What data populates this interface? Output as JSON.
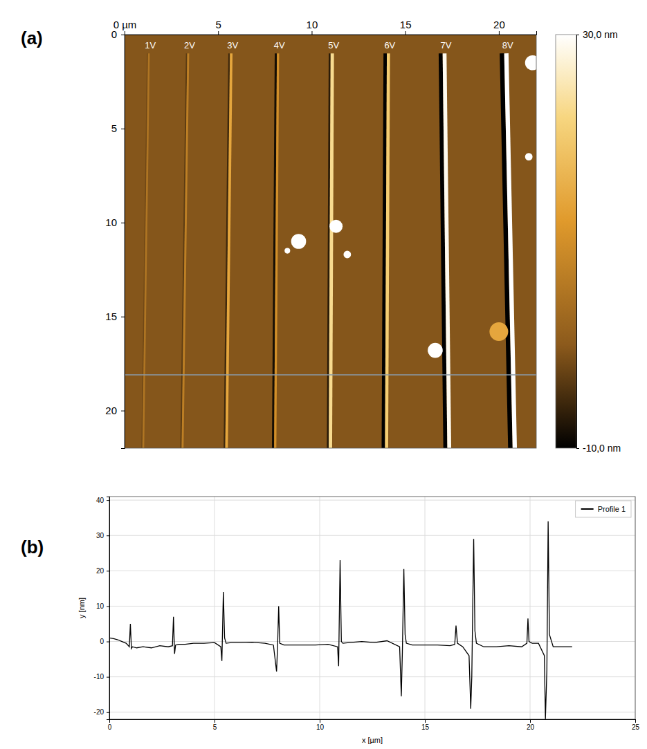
{
  "chart_data": [
    {
      "type": "heatmap",
      "panel": "(a)",
      "xlim": [
        0,
        22
      ],
      "xticks": [
        {
          "value": 0,
          "label": "0 µm"
        },
        5,
        10,
        15,
        20
      ],
      "ylim": [
        0,
        22
      ],
      "yticks": [
        0,
        5,
        10,
        15,
        20
      ],
      "background": -0.5,
      "lines": [
        {
          "label": "1V",
          "x_top": 1.3,
          "x_bottom": 1.0,
          "y_start": 1.0,
          "peak": 5,
          "depth": -2
        },
        {
          "label": "2V",
          "x_top": 3.4,
          "x_bottom": 3.1,
          "y_start": 1.0,
          "peak": 7,
          "depth": -3.5
        },
        {
          "label": "3V",
          "x_top": 5.7,
          "x_bottom": 5.45,
          "y_start": 1.0,
          "peak": 14,
          "depth": -5.5
        },
        {
          "label": "4V",
          "x_top": 8.2,
          "x_bottom": 8.05,
          "y_start": 1.0,
          "peak": 10,
          "depth": -8.5
        },
        {
          "label": "5V",
          "x_top": 11.1,
          "x_bottom": 11.0,
          "y_start": 1.0,
          "peak": 23,
          "depth": -7
        },
        {
          "label": "6V",
          "x_top": 14.1,
          "x_bottom": 14.0,
          "y_start": 1.0,
          "peak": 20.5,
          "depth": -15.5
        },
        {
          "label": "7V",
          "x_top": 17.1,
          "x_bottom": 17.35,
          "y_start": 1.0,
          "peak": 29,
          "depth": -19
        },
        {
          "label": "8V",
          "x_top": 20.4,
          "x_bottom": 20.85,
          "y_start": 1.0,
          "peak": 34,
          "depth": -22
        }
      ],
      "particles": [
        {
          "x": 9.3,
          "y": 11.0,
          "size": 0.4,
          "value": 30
        },
        {
          "x": 8.7,
          "y": 11.5,
          "size": 0.15,
          "value": 30
        },
        {
          "x": 11.3,
          "y": 10.2,
          "size": 0.35,
          "value": 30
        },
        {
          "x": 11.9,
          "y": 11.7,
          "size": 0.2,
          "value": 30
        },
        {
          "x": 16.6,
          "y": 16.8,
          "size": 0.4,
          "value": 30
        },
        {
          "x": 20.0,
          "y": 15.8,
          "size": 0.5,
          "value": 14
        },
        {
          "x": 21.8,
          "y": 1.5,
          "size": 0.4,
          "value": 30
        },
        {
          "x": 21.6,
          "y": 6.5,
          "size": 0.2,
          "value": 30
        }
      ],
      "profile_y": 18.1,
      "colorbar": {
        "range": [
          -10,
          30
        ],
        "ticks": [
          {
            "value": 30,
            "label": "30,0 nm"
          },
          {
            "value": -10,
            "label": "-10,0 nm"
          }
        ]
      }
    },
    {
      "type": "line",
      "panel": "(b)",
      "xlabel": "x [µm]",
      "ylabel": "y [nm]",
      "xlim": [
        0,
        25
      ],
      "xticks": [
        0,
        5,
        10,
        15,
        20,
        25
      ],
      "ylim": [
        -22,
        41
      ],
      "yticks": [
        -20,
        -10,
        0,
        10,
        20,
        30,
        40
      ],
      "grid": true,
      "legend": "top-right",
      "series": [
        {
          "name": "Profile 1",
          "color": "#000000",
          "x": [
            0,
            0.2,
            0.4,
            0.6,
            0.8,
            0.95,
            1.0,
            1.05,
            1.1,
            1.3,
            1.6,
            2.0,
            2.4,
            2.8,
            3.0,
            3.05,
            3.1,
            3.15,
            3.3,
            3.6,
            4.0,
            4.5,
            5.0,
            5.3,
            5.35,
            5.42,
            5.48,
            5.55,
            5.8,
            6.2,
            6.8,
            7.4,
            7.8,
            7.95,
            8.0,
            8.05,
            8.1,
            8.3,
            8.6,
            9.2,
            9.8,
            10.4,
            10.85,
            10.9,
            10.97,
            11.03,
            11.1,
            11.4,
            12.0,
            12.6,
            13.2,
            13.8,
            13.88,
            13.93,
            14.0,
            14.06,
            14.12,
            14.4,
            15.0,
            15.6,
            16.2,
            16.42,
            16.48,
            16.55,
            16.8,
            17.1,
            17.18,
            17.23,
            17.32,
            17.38,
            17.45,
            17.8,
            18.4,
            19.0,
            19.6,
            19.85,
            19.9,
            19.95,
            20.1,
            20.4,
            20.68,
            20.73,
            20.8,
            20.86,
            20.92,
            21.1,
            21.5,
            22.0
          ],
          "values": [
            1,
            0.8,
            0.5,
            0,
            -0.5,
            -1.5,
            5,
            -2,
            -1.5,
            -1.8,
            -1.5,
            -1.8,
            -1.2,
            -1.5,
            -1.2,
            7,
            -3.5,
            -1,
            -0.8,
            -0.8,
            -0.5,
            -0.5,
            -0.3,
            -1.5,
            -5.5,
            14,
            1,
            -0.5,
            -0.3,
            -0.3,
            -0.2,
            -0.5,
            -1,
            -8.5,
            -1,
            10,
            -0.5,
            -1,
            -1,
            -1,
            -1,
            -0.8,
            -1.5,
            -7,
            23,
            0,
            -0.5,
            -0.3,
            0,
            -0.3,
            0.2,
            -1.5,
            -15.5,
            -3,
            20.5,
            2,
            -0.5,
            -1,
            -1,
            -1,
            -1.2,
            -0.8,
            4.5,
            -0.5,
            -1.5,
            -4,
            -19,
            -10,
            29,
            3,
            -0.5,
            -1.5,
            -1.5,
            -1.2,
            -1.5,
            -0.5,
            6.5,
            0,
            -0.5,
            -0.5,
            -4,
            -22,
            -8,
            34,
            2,
            -1.5,
            -1.5,
            -1.5
          ]
        }
      ]
    }
  ]
}
